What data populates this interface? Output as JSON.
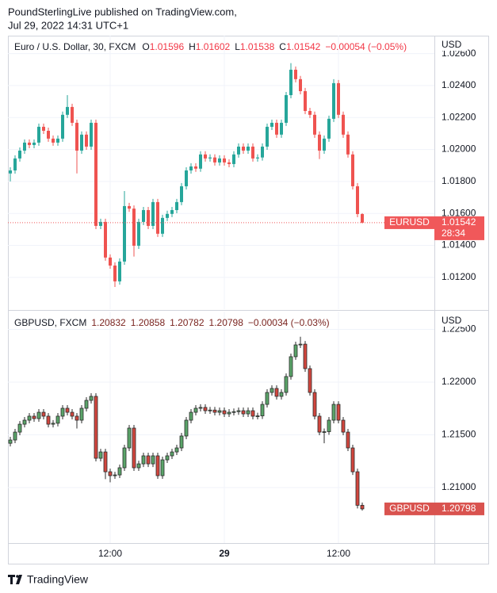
{
  "header": {
    "publisher": "PoundSterlingLive published on TradingView.com,",
    "timestamp": "Jul 29, 2022 14:31 UTC+1"
  },
  "footer": {
    "brand": "TradingView"
  },
  "chart_data": [
    {
      "type": "candlestick",
      "title": "Euro / U.S. Dollar, 30, FXCM",
      "ohlc_letters": [
        "O",
        "H",
        "L",
        "C"
      ],
      "change_label": "−0.00054 (−0.05%)",
      "symbol": "EURUSD",
      "countdown": "28:34",
      "y_axis_label": "USD",
      "up_color": "#26a69a",
      "down_color": "#ef5350",
      "legend_value_color": "#f23645",
      "tag_color": "#f0585a",
      "last_price_line": true,
      "ylim": [
        1.01001,
        1.02712
      ],
      "yticks": [
        {
          "value": 1.012,
          "label": "1.01200"
        },
        {
          "value": 1.014,
          "label": "1.01400"
        },
        {
          "value": 1.016,
          "label": "1.01600"
        },
        {
          "value": 1.018,
          "label": "1.01800"
        },
        {
          "value": 1.02,
          "label": "1.02000"
        },
        {
          "value": 1.022,
          "label": "1.02200"
        },
        {
          "value": 1.024,
          "label": "1.02400"
        },
        {
          "value": 1.026,
          "label": "1.02600"
        }
      ],
      "open": [
        1.0185,
        1.01869,
        1.01944,
        1.01993,
        1.02043,
        1.02028,
        1.02043,
        1.02142,
        1.02117,
        1.02068,
        1.02043,
        1.02068,
        1.02217,
        1.02266,
        1.02167,
        1.01993,
        1.02093,
        1.02018,
        1.02167,
        1.01522,
        1.01547,
        1.01324,
        1.01274,
        1.01175,
        1.01299,
        1.01646,
        1.0163,
        1.01398,
        1.01547,
        1.01621,
        1.01522,
        1.01671,
        1.01473,
        1.01572,
        1.01597,
        1.01621,
        1.01671,
        1.0177,
        1.01869,
        1.01894,
        1.0188,
        1.01969,
        1.01944,
        1.0195,
        1.01919,
        1.01944,
        1.01919,
        1.01909,
        1.01969,
        1.02018,
        1.01993,
        1.02018,
        1.01944,
        1.0195,
        1.02018,
        1.02142,
        1.02167,
        1.02093,
        1.02167,
        1.0234,
        1.02499,
        1.0244,
        1.02365,
        1.02241,
        1.02217,
        1.02093,
        1.01993,
        1.02068,
        1.02192,
        1.02415,
        1.02217,
        1.02093,
        1.01969,
        1.0177,
        1.01596
      ],
      "high": [
        1.01889,
        1.01964,
        1.02013,
        1.02063,
        1.02063,
        1.02063,
        1.02162,
        1.02162,
        1.02137,
        1.02088,
        1.02088,
        1.02237,
        1.0234,
        1.02286,
        1.02187,
        1.02113,
        1.02113,
        1.02187,
        1.02187,
        1.01567,
        1.01567,
        1.01344,
        1.01294,
        1.01319,
        1.0174,
        1.01666,
        1.0165,
        1.01567,
        1.01641,
        1.01641,
        1.01691,
        1.01691,
        1.01592,
        1.01617,
        1.01641,
        1.01691,
        1.0179,
        1.01889,
        1.01914,
        1.01914,
        1.01989,
        1.01989,
        1.0197,
        1.0197,
        1.01964,
        1.01964,
        1.01939,
        1.01989,
        1.02038,
        1.02038,
        1.02038,
        1.02038,
        1.0197,
        1.02038,
        1.02162,
        1.02187,
        1.02187,
        1.02187,
        1.0236,
        1.0254,
        1.02519,
        1.0246,
        1.02385,
        1.02261,
        1.02237,
        1.02113,
        1.02088,
        1.02212,
        1.0244,
        1.02435,
        1.02237,
        1.02113,
        1.01989,
        1.0179,
        1.01602
      ],
      "low": [
        1.018,
        1.01849,
        1.01924,
        1.01973,
        1.02008,
        1.02008,
        1.02023,
        1.02097,
        1.02048,
        1.02023,
        1.02023,
        1.02048,
        1.02197,
        1.02147,
        1.0185,
        1.01973,
        1.01998,
        1.01998,
        1.01502,
        1.01502,
        1.01304,
        1.01254,
        1.0114,
        1.01155,
        1.01279,
        1.0161,
        1.0133,
        1.01378,
        1.01527,
        1.01502,
        1.01502,
        1.01453,
        1.01453,
        1.01552,
        1.01577,
        1.01601,
        1.01651,
        1.0175,
        1.01849,
        1.0186,
        1.0186,
        1.01924,
        1.01924,
        1.01899,
        1.01899,
        1.01899,
        1.01889,
        1.01889,
        1.01949,
        1.01973,
        1.01973,
        1.01924,
        1.01924,
        1.0193,
        1.01998,
        1.02122,
        1.02073,
        1.02073,
        1.02147,
        1.0232,
        1.0242,
        1.02345,
        1.02221,
        1.02197,
        1.02073,
        1.0194,
        1.01973,
        1.02048,
        1.02172,
        1.02197,
        1.02073,
        1.01949,
        1.0175,
        1.01576,
        1.01538
      ],
      "close": [
        1.01869,
        1.01944,
        1.01993,
        1.02043,
        1.02028,
        1.02043,
        1.02142,
        1.02117,
        1.02068,
        1.02043,
        1.02068,
        1.02217,
        1.02266,
        1.02167,
        1.01993,
        1.02093,
        1.02018,
        1.02167,
        1.01522,
        1.01547,
        1.01324,
        1.01274,
        1.01175,
        1.01299,
        1.01646,
        1.0163,
        1.01398,
        1.01547,
        1.01621,
        1.01522,
        1.01671,
        1.01473,
        1.01572,
        1.01597,
        1.01621,
        1.01671,
        1.0177,
        1.01869,
        1.01894,
        1.0188,
        1.01969,
        1.01944,
        1.0195,
        1.01919,
        1.01944,
        1.01919,
        1.01909,
        1.01969,
        1.02018,
        1.01993,
        1.02018,
        1.01944,
        1.0195,
        1.02018,
        1.02142,
        1.02167,
        1.02093,
        1.02167,
        1.0234,
        1.02499,
        1.0244,
        1.02365,
        1.02241,
        1.02217,
        1.02093,
        1.01993,
        1.02068,
        1.02192,
        1.02415,
        1.02217,
        1.02093,
        1.01969,
        1.0177,
        1.01596,
        1.01542
      ]
    },
    {
      "type": "candlestick",
      "title": "GBPUSD, FXCM",
      "change_label": "−0.00034 (−0.03%)",
      "symbol": "GBPUSD",
      "y_axis_label": "USD",
      "up_color": "#5aa469",
      "down_color": "#d2463e",
      "outline_color": "#2b2b2b",
      "legend_value_color": "#7a2420",
      "tag_color": "#d9534f",
      "last_price_line": false,
      "ylim": [
        1.20474,
        1.22669
      ],
      "yticks": [
        {
          "value": 1.21,
          "label": "1.21000"
        },
        {
          "value": 1.215,
          "label": "1.21500"
        },
        {
          "value": 1.22,
          "label": "1.22000"
        },
        {
          "value": 1.225,
          "label": "1.22500"
        }
      ],
      "categories": [
        null,
        null,
        null,
        null,
        null,
        null,
        null,
        null,
        null,
        null,
        null,
        null,
        null,
        null,
        null,
        null,
        null,
        null,
        null,
        null,
        null,
        "12:00",
        null,
        null,
        null,
        null,
        null,
        null,
        null,
        null,
        null,
        null,
        null,
        null,
        null,
        null,
        null,
        null,
        null,
        null,
        null,
        null,
        null,
        null,
        null,
        "29",
        null,
        null,
        null,
        null,
        null,
        null,
        null,
        null,
        null,
        null,
        null,
        null,
        null,
        null,
        null,
        null,
        null,
        null,
        null,
        null,
        null,
        null,
        null,
        "12:00",
        null,
        null,
        null,
        null,
        null
      ],
      "open": [
        1.2142,
        1.21451,
        1.21526,
        1.21601,
        1.21639,
        1.21677,
        1.21654,
        1.21714,
        1.21677,
        1.21601,
        1.2161,
        1.21677,
        1.21752,
        1.21714,
        1.21677,
        1.21639,
        1.21752,
        1.21827,
        1.21865,
        1.21278,
        1.21338,
        1.2115,
        1.21113,
        1.2112,
        1.21188,
        1.21376,
        1.21564,
        1.21188,
        1.21225,
        1.21301,
        1.21225,
        1.21301,
        1.21113,
        1.21263,
        1.21301,
        1.21338,
        1.21376,
        1.21489,
        1.21639,
        1.21714,
        1.21752,
        1.2176,
        1.21729,
        1.21735,
        1.21714,
        1.21729,
        1.21699,
        1.21714,
        1.2172,
        1.21729,
        1.21699,
        1.21729,
        1.21677,
        1.2168,
        1.21789,
        1.21902,
        1.2194,
        1.21865,
        1.21902,
        1.22053,
        1.22241,
        1.22353,
        1.2236,
        1.22128,
        1.21902,
        1.21677,
        1.21526,
        1.2153,
        1.21639,
        1.21789,
        1.21639,
        1.21526,
        1.21376,
        1.2115,
        1.20832
      ],
      "high": [
        1.21481,
        1.21556,
        1.21631,
        1.21669,
        1.21707,
        1.21707,
        1.21744,
        1.21744,
        1.21707,
        1.2164,
        1.21707,
        1.21782,
        1.21782,
        1.21744,
        1.21707,
        1.21782,
        1.21857,
        1.21895,
        1.21895,
        1.21368,
        1.21368,
        1.2118,
        1.2115,
        1.21218,
        1.21406,
        1.21594,
        1.21594,
        1.21255,
        1.21331,
        1.21331,
        1.21331,
        1.21331,
        1.21293,
        1.21331,
        1.21368,
        1.21406,
        1.21519,
        1.21669,
        1.21744,
        1.21782,
        1.2179,
        1.2179,
        1.21765,
        1.21765,
        1.21759,
        1.21759,
        1.21744,
        1.2175,
        1.21759,
        1.21759,
        1.21759,
        1.21759,
        1.2171,
        1.21819,
        1.21932,
        1.2197,
        1.2197,
        1.21932,
        1.22083,
        1.22271,
        1.22383,
        1.2243,
        1.2239,
        1.22158,
        1.21932,
        1.21707,
        1.2156,
        1.21669,
        1.21819,
        1.21819,
        1.21669,
        1.21556,
        1.21406,
        1.2118,
        1.20858
      ],
      "low": [
        1.2139,
        1.21421,
        1.21496,
        1.21571,
        1.21609,
        1.21624,
        1.21624,
        1.21647,
        1.21571,
        1.21571,
        1.2158,
        1.21647,
        1.21684,
        1.21647,
        1.2156,
        1.21609,
        1.21722,
        1.21797,
        1.21248,
        1.21248,
        1.2108,
        1.2105,
        1.21083,
        1.2109,
        1.21158,
        1.21346,
        1.21158,
        1.21158,
        1.21195,
        1.21195,
        1.21195,
        1.21083,
        1.21083,
        1.21233,
        1.21271,
        1.21308,
        1.21346,
        1.21459,
        1.21609,
        1.21684,
        1.21722,
        1.21699,
        1.21699,
        1.21684,
        1.21684,
        1.21669,
        1.21669,
        1.21684,
        1.2169,
        1.21669,
        1.21669,
        1.21647,
        1.21647,
        1.2165,
        1.21759,
        1.21872,
        1.21835,
        1.21835,
        1.21872,
        1.22023,
        1.22211,
        1.22323,
        1.22098,
        1.21872,
        1.21647,
        1.21496,
        1.2142,
        1.215,
        1.21609,
        1.21609,
        1.21496,
        1.21346,
        1.2112,
        1.20802,
        1.20782
      ],
      "close": [
        1.21451,
        1.21526,
        1.21601,
        1.21639,
        1.21677,
        1.21654,
        1.21714,
        1.21677,
        1.21601,
        1.2161,
        1.21677,
        1.21752,
        1.21714,
        1.21677,
        1.21639,
        1.21752,
        1.21827,
        1.21865,
        1.21278,
        1.21338,
        1.2115,
        1.21113,
        1.2112,
        1.21188,
        1.21376,
        1.21564,
        1.21188,
        1.21225,
        1.21301,
        1.21225,
        1.21301,
        1.21113,
        1.21263,
        1.21301,
        1.21338,
        1.21376,
        1.21489,
        1.21639,
        1.21714,
        1.21752,
        1.2176,
        1.21729,
        1.21735,
        1.21714,
        1.21729,
        1.21699,
        1.21714,
        1.2172,
        1.21729,
        1.21699,
        1.21729,
        1.21677,
        1.2168,
        1.21789,
        1.21902,
        1.2194,
        1.21865,
        1.21902,
        1.22053,
        1.22241,
        1.22353,
        1.2236,
        1.22128,
        1.21902,
        1.21677,
        1.21526,
        1.2153,
        1.21639,
        1.21789,
        1.21639,
        1.21526,
        1.21376,
        1.2115,
        1.20832,
        1.20798
      ]
    }
  ]
}
